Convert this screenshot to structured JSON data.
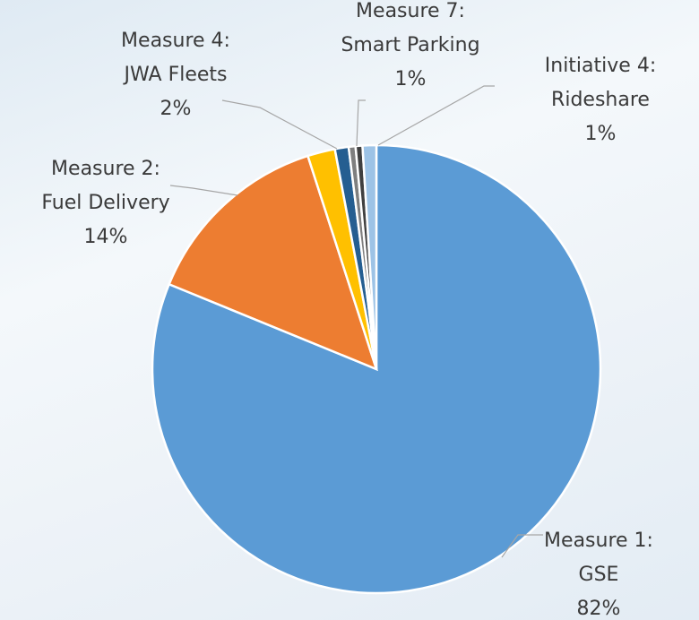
{
  "chart_data": {
    "type": "pie",
    "categories": [
      "Measure 1: GSE",
      "Measure 2: Fuel Delivery",
      "Measure 4: JWA Fleets",
      "Measure 7: Smart Parking",
      null,
      null,
      "Initiative 4: Rideshare"
    ],
    "values": [
      82,
      14,
      2,
      1,
      0.5,
      0.5,
      1
    ],
    "value_labels": [
      "82%",
      "14%",
      "2%",
      "1%",
      null,
      null,
      "1%"
    ],
    "colors": [
      "#5b9bd5",
      "#ed7d31",
      "#ffc000",
      "#255e91",
      "#7f7f7f",
      "#404040",
      "#9dc3e6"
    ]
  }
}
